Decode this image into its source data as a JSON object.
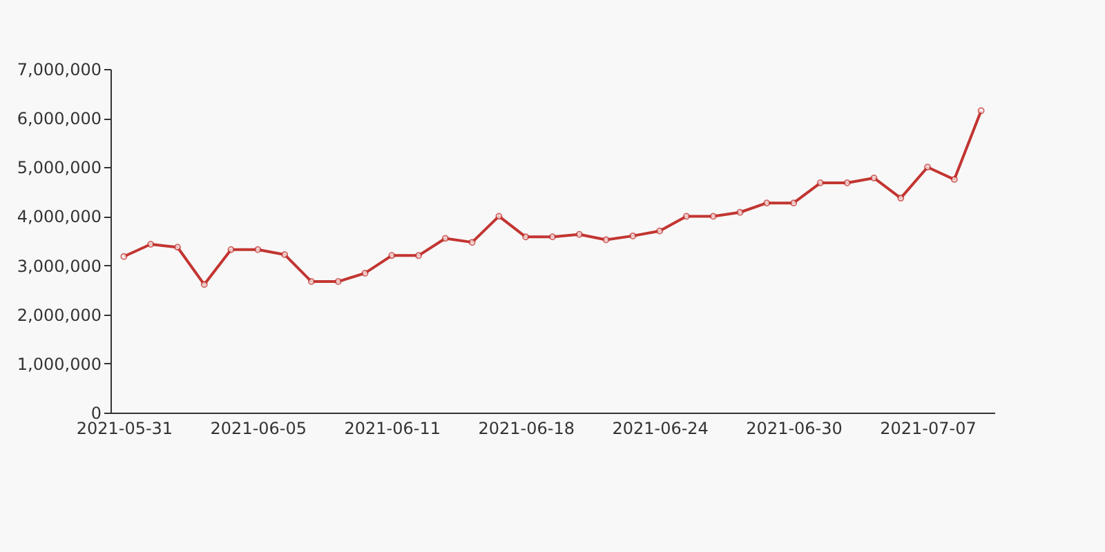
{
  "chart_data": {
    "type": "line",
    "categories": [
      "2021-05-31",
      null,
      null,
      null,
      null,
      "2021-06-05",
      null,
      null,
      null,
      null,
      "2021-06-11",
      null,
      null,
      null,
      null,
      "2021-06-18",
      null,
      null,
      null,
      null,
      "2021-06-24",
      null,
      null,
      null,
      null,
      "2021-06-30",
      null,
      null,
      null,
      null,
      "2021-07-07",
      null,
      null
    ],
    "series": [
      {
        "color": "#c23531",
        "values": [
          3180000,
          3430000,
          3370000,
          2610000,
          3320000,
          3320000,
          3220000,
          2670000,
          2670000,
          2840000,
          3200000,
          3200000,
          3550000,
          3470000,
          4000000,
          3580000,
          3580000,
          3630000,
          3520000,
          3600000,
          3700000,
          4000000,
          4000000,
          4080000,
          4270000,
          4270000,
          4680000,
          4680000,
          4780000,
          4370000,
          5000000,
          4750000,
          6150000
        ]
      }
    ],
    "ylim": [
      0,
      7000000
    ],
    "yticks": [
      0,
      {
        "value": 1000000,
        "label": "1,000,000"
      },
      {
        "value": 2000000,
        "label": "2,000,000"
      },
      {
        "value": 3000000,
        "label": "3,000,000"
      },
      {
        "value": 4000000,
        "label": "4,000,000"
      },
      {
        "value": 5000000,
        "label": "5,000,000"
      },
      {
        "value": 6000000,
        "label": "6,000,000"
      },
      {
        "value": 7000000,
        "label": "7,000,000"
      }
    ],
    "grid": false,
    "marker": "circle",
    "line_style": "solid",
    "legend": false
  }
}
